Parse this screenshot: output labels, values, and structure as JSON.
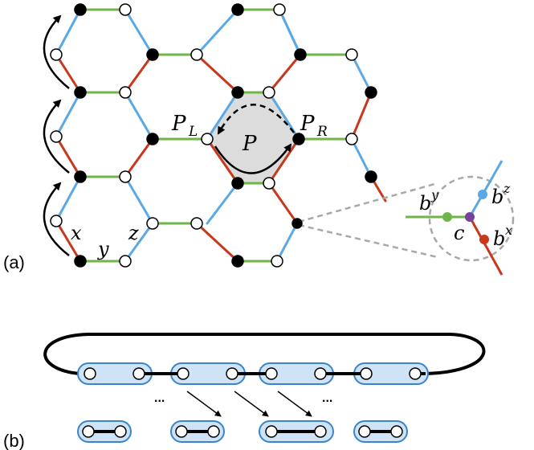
{
  "panel_a": {
    "label": "(a)",
    "bond_labels": {
      "x": "x",
      "y": "y",
      "z": "z"
    },
    "plaquette": {
      "name": "P",
      "left_sub": "L",
      "right_sub": "R",
      "base": "P"
    },
    "zoom": {
      "by_base": "b",
      "by_sup": "y",
      "bz_base": "b",
      "bz_sup": "z",
      "bx_base": "b",
      "bx_sup": "x",
      "c": "c"
    }
  },
  "panel_b": {
    "label": "(b)",
    "ellipsis": "..."
  },
  "colors": {
    "x_bond": "#c8381d",
    "y_bond": "#6fb54a",
    "z_bond": "#5aa9e6",
    "c_site": "#7b3f9e",
    "plaquette_fill": "#dcdcdc",
    "pair_box": "#cfe3f7",
    "pair_box_stroke": "#3b84c9"
  }
}
